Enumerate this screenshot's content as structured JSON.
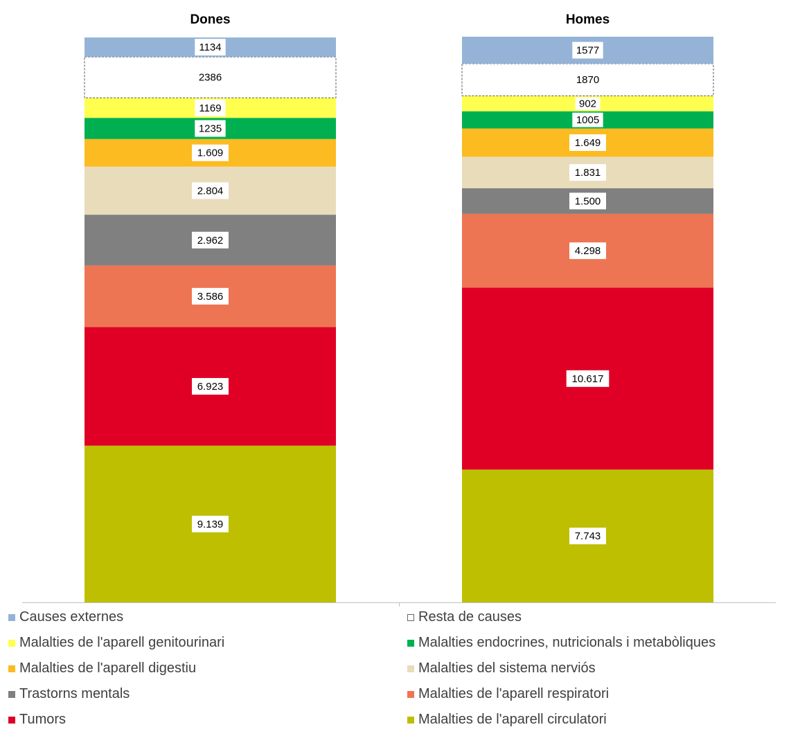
{
  "chart_data": {
    "type": "bar",
    "stacked": true,
    "panels": [
      {
        "title": "Dones",
        "segments": [
          {
            "name": "Malalties de l'aparell circulatori",
            "value": 9139,
            "label": "9.139"
          },
          {
            "name": "Tumors",
            "value": 6923,
            "label": "6.923"
          },
          {
            "name": "Malalties de l'aparell respiratori",
            "value": 3586,
            "label": "3.586"
          },
          {
            "name": "Trastorns mentals",
            "value": 2962,
            "label": "2.962"
          },
          {
            "name": "Malalties del sistema nerviós",
            "value": 2804,
            "label": "2.804"
          },
          {
            "name": "Malalties de l'aparell digestiu",
            "value": 1609,
            "label": "1.609"
          },
          {
            "name": "Malalties endocrines, nutricionals i metabòliques",
            "value": 1235,
            "label": "1235"
          },
          {
            "name": "Malalties de l'aparell genitourinari",
            "value": 1169,
            "label": "1169"
          },
          {
            "name": "Resta de causes",
            "value": 2386,
            "label": "2386"
          },
          {
            "name": "Causes externes",
            "value": 1134,
            "label": "1134"
          }
        ]
      },
      {
        "title": "Homes",
        "segments": [
          {
            "name": "Malalties de l'aparell circulatori",
            "value": 7743,
            "label": "7.743"
          },
          {
            "name": "Tumors",
            "value": 10617,
            "label": "10.617"
          },
          {
            "name": "Malalties de l'aparell respiratori",
            "value": 4298,
            "label": "4.298"
          },
          {
            "name": "Trastorns mentals",
            "value": 1500,
            "label": "1.500"
          },
          {
            "name": "Malalties del sistema nerviós",
            "value": 1831,
            "label": "1.831"
          },
          {
            "name": "Malalties de l'aparell digestiu",
            "value": 1649,
            "label": "1.649"
          },
          {
            "name": "Malalties endocrines, nutricionals i metabòliques",
            "value": 1005,
            "label": "1005"
          },
          {
            "name": "Malalties de l'aparell genitourinari",
            "value": 902,
            "label": "902"
          },
          {
            "name": "Resta de causes",
            "value": 1870,
            "label": "1870"
          },
          {
            "name": "Causes externes",
            "value": 1577,
            "label": "1577"
          }
        ]
      }
    ],
    "series_colors": {
      "Malalties de l'aparell circulatori": "#bdbf00",
      "Tumors": "#e00026",
      "Malalties de l'aparell respiratori": "#ee7554",
      "Trastorns mentals": "#808080",
      "Malalties del sistema nerviós": "#e9dcba",
      "Malalties de l'aparell digestiu": "#fbbb21",
      "Malalties endocrines, nutricionals i metabòliques": "#00b050",
      "Malalties de l'aparell genitourinari": "#ffff50",
      "Resta de causes": "#ffffff",
      "Causes externes": "#95b3d7"
    },
    "legend": {
      "position": "bottom",
      "items": [
        {
          "label": "Causes externes",
          "color": "#95b3d7"
        },
        {
          "label": "Resta de causes",
          "color": "#ffffff",
          "dashed": true
        },
        {
          "label": "Malalties de l'aparell genitourinari",
          "color": "#ffff50"
        },
        {
          "label": "Malalties endocrines, nutricionals i metabòliques",
          "color": "#00b050"
        },
        {
          "label": "Malalties de l'aparell digestiu",
          "color": "#fbbb21"
        },
        {
          "label": "Malalties del sistema nerviós",
          "color": "#e9dcba"
        },
        {
          "label": "Trastorns mentals",
          "color": "#808080"
        },
        {
          "label": "Malalties de l'aparell respiratori",
          "color": "#ee7554"
        },
        {
          "label": "Tumors",
          "color": "#e00026"
        },
        {
          "label": "Malalties de l'aparell circulatori",
          "color": "#bdbf00"
        }
      ]
    }
  }
}
